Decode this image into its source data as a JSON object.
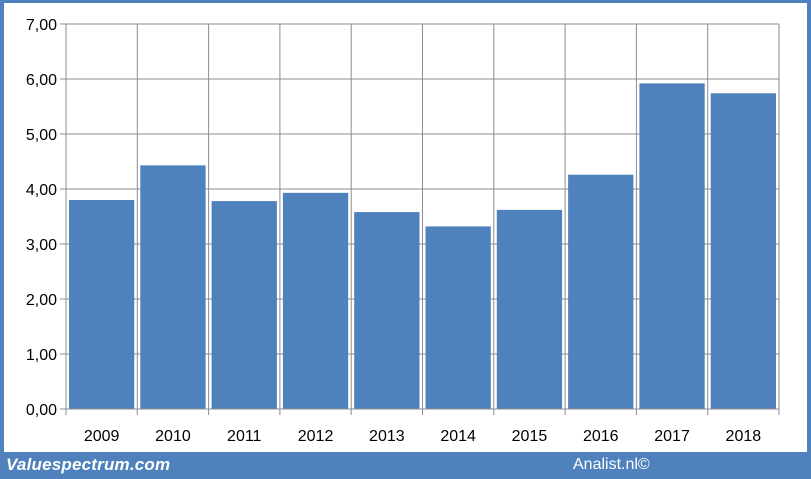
{
  "footer": {
    "site_label": "Valuespectrum.com",
    "credit_label": "Analist.nl©"
  },
  "chart_data": {
    "type": "bar",
    "title": "",
    "xlabel": "",
    "ylabel": "",
    "categories": [
      "2009",
      "2010",
      "2011",
      "2012",
      "2013",
      "2014",
      "2015",
      "2016",
      "2017",
      "2018"
    ],
    "values": [
      3.8,
      4.43,
      3.78,
      3.93,
      3.58,
      3.32,
      3.62,
      4.26,
      5.92,
      5.74
    ],
    "ylim": [
      0,
      7
    ],
    "yticks": [
      "0,00",
      "1,00",
      "2,00",
      "3,00",
      "4,00",
      "5,00",
      "6,00",
      "7,00"
    ],
    "grid": true,
    "legend": "none",
    "bar_color": "#4f81bd",
    "frame_color": "#4f81bd"
  }
}
